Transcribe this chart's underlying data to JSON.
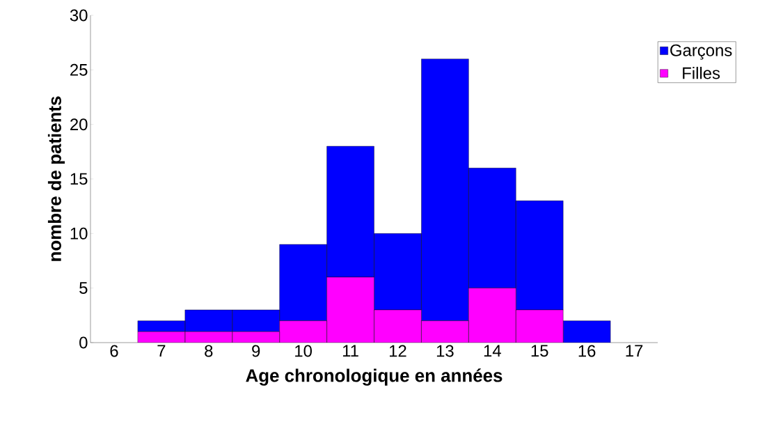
{
  "chart_data": {
    "type": "bar",
    "stacked": true,
    "xlabel": "Age chronologique en années",
    "ylabel": "nombre de patients",
    "categories": [
      "6",
      "7",
      "8",
      "9",
      "10",
      "11",
      "12",
      "13",
      "14",
      "15",
      "16",
      "17"
    ],
    "series": [
      {
        "name": "Filles",
        "color": "#ff00ff",
        "values": [
          0,
          1,
          1,
          1,
          2,
          6,
          3,
          2,
          5,
          3,
          0,
          0
        ]
      },
      {
        "name": "Garçons",
        "color": "#0000ff",
        "values": [
          0,
          1,
          2,
          2,
          7,
          12,
          7,
          24,
          11,
          10,
          2,
          0
        ]
      }
    ],
    "ylim": [
      0,
      30
    ],
    "yticks": [
      0,
      5,
      10,
      15,
      20,
      25,
      30
    ],
    "legend": "top right"
  }
}
